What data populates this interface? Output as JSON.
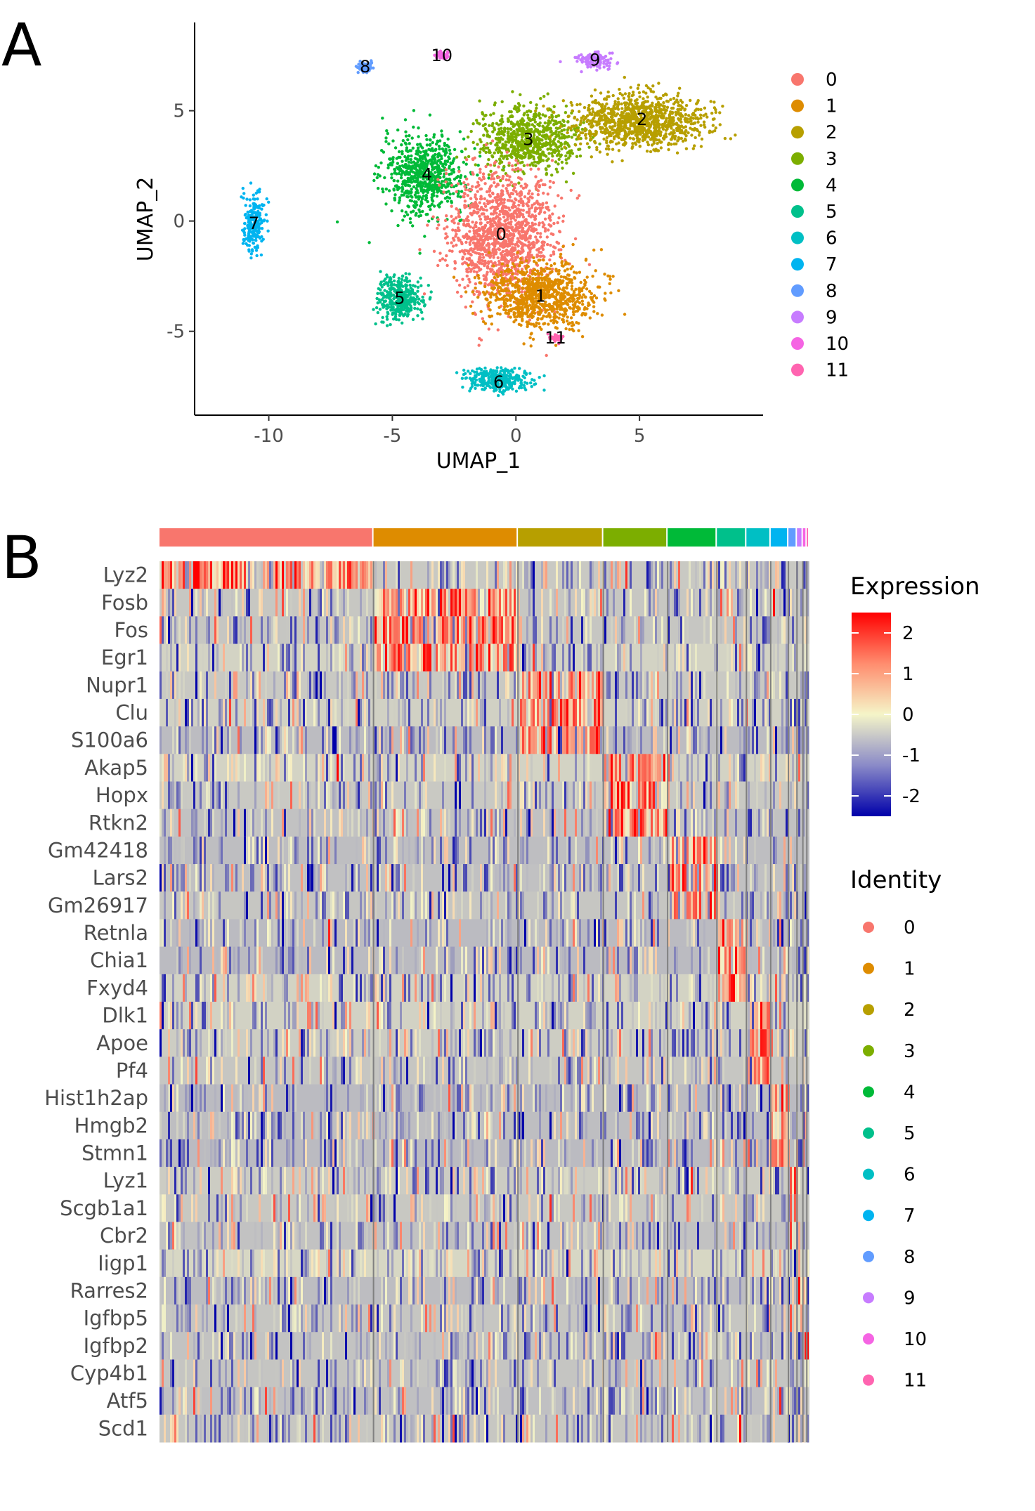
{
  "panels": {
    "a": "A",
    "b": "B"
  },
  "colors": {
    "0": "#F8766D",
    "1": "#DE8C00",
    "2": "#B79F00",
    "3": "#7CAE00",
    "4": "#00BA38",
    "5": "#00C08B",
    "6": "#00BFC4",
    "7": "#00B4F0",
    "8": "#619CFF",
    "9": "#C77CFF",
    "10": "#F564E3",
    "11": "#FF64B0"
  },
  "chart_data": [
    {
      "type": "scatter",
      "xlabel": "UMAP_1",
      "ylabel": "UMAP_2",
      "xlim": [
        -13,
        10
      ],
      "ylim": [
        -8.8,
        9
      ],
      "xticks": [
        -10,
        -5,
        0,
        5
      ],
      "yticks": [
        5,
        0,
        -5
      ],
      "legend_position": "right",
      "legend": [
        "0",
        "1",
        "2",
        "3",
        "4",
        "5",
        "6",
        "7",
        "8",
        "9",
        "10",
        "11"
      ],
      "clusters": [
        {
          "name": "0",
          "center": [
            -0.6,
            -0.6
          ],
          "label_pos": [
            -0.6,
            -0.6
          ]
        },
        {
          "name": "1",
          "center": [
            1.0,
            -3.4
          ],
          "label_pos": [
            1.0,
            -3.4
          ]
        },
        {
          "name": "2",
          "center": [
            5.0,
            4.5
          ],
          "label_pos": [
            5.1,
            4.6
          ]
        },
        {
          "name": "3",
          "center": [
            0.5,
            3.7
          ],
          "label_pos": [
            0.5,
            3.7
          ]
        },
        {
          "name": "4",
          "center": [
            -3.7,
            2.1
          ],
          "label_pos": [
            -3.6,
            2.1
          ]
        },
        {
          "name": "5",
          "center": [
            -4.7,
            -3.5
          ],
          "label_pos": [
            -4.7,
            -3.5
          ]
        },
        {
          "name": "6",
          "center": [
            -0.7,
            -7.2
          ],
          "label_pos": [
            -0.7,
            -7.3
          ]
        },
        {
          "name": "7",
          "center": [
            -10.6,
            -0.1
          ],
          "label_pos": [
            -10.6,
            -0.1
          ]
        },
        {
          "name": "8",
          "center": [
            -6.1,
            7.0
          ],
          "label_pos": [
            -6.1,
            7.0
          ]
        },
        {
          "name": "9",
          "center": [
            3.2,
            7.3
          ],
          "label_pos": [
            3.2,
            7.3
          ]
        },
        {
          "name": "10",
          "center": [
            -3.0,
            7.5
          ],
          "label_pos": [
            -3.0,
            7.5
          ]
        },
        {
          "name": "11",
          "center": [
            1.6,
            -5.3
          ],
          "label_pos": [
            1.6,
            -5.3
          ]
        }
      ]
    },
    {
      "type": "heatmap",
      "genes": [
        "Lyz2",
        "Fosb",
        "Fos",
        "Egr1",
        "Nupr1",
        "Clu",
        "S100a6",
        "Akap5",
        "Hopx",
        "Rtkn2",
        "Gm42418",
        "Lars2",
        "Gm26917",
        "Retnla",
        "Chia1",
        "Fxyd4",
        "Dlk1",
        "Apoe",
        "Pf4",
        "Hist1h2ap",
        "Hmgb2",
        "Stmn1",
        "Lyz1",
        "Scgb1a1",
        "Cbr2",
        "Iigp1",
        "Rarres2",
        "Igfbp5",
        "Igfbp2",
        "Cyp4b1",
        "Atf5",
        "Scd1"
      ],
      "identities": [
        "0",
        "1",
        "2",
        "3",
        "4",
        "5",
        "6",
        "7",
        "8",
        "9",
        "10",
        "11"
      ],
      "identity_fraction": [
        0.326,
        0.22,
        0.13,
        0.098,
        0.075,
        0.045,
        0.037,
        0.027,
        0.013,
        0.009,
        0.006,
        0.004
      ],
      "marker_cluster": [
        0,
        1,
        1,
        1,
        2,
        2,
        2,
        3,
        3,
        3,
        4,
        4,
        4,
        5,
        5,
        5,
        6,
        6,
        6,
        7,
        7,
        7,
        8,
        8,
        8,
        9,
        9,
        9,
        10,
        10,
        11,
        11
      ],
      "color_scale": {
        "title": "Expression",
        "low": "#0000AA",
        "mid": "#F5F5C8",
        "high": "#FF0000",
        "range": [
          -2.5,
          2.5
        ],
        "ticks": [
          "2",
          "1",
          "0",
          "-1",
          "-2"
        ]
      },
      "identity_legend_title": "Identity",
      "legend_position": "right"
    }
  ]
}
